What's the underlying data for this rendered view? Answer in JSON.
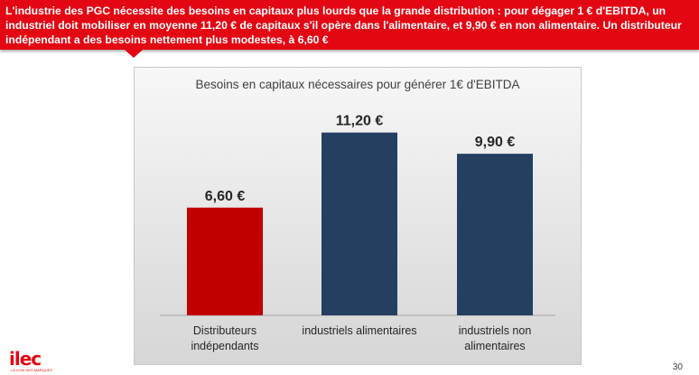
{
  "banner": {
    "text": "L'industrie des PGC nécessite des besoins en capitaux plus lourds que la grande distribution : pour dégager 1 € d'EBITDA, un industriel doit mobiliser en moyenne 11,20 € de capitaux s'il opère dans l'alimentaire, et 9,90 € en non alimentaire. Un distributeur indépendant a des besoins nettement plus modestes, à 6,60 €"
  },
  "chart_data": {
    "type": "bar",
    "title": "Besoins en capitaux nécessaires pour générer 1€ d'EBITDA",
    "categories": [
      "Distributeurs indépendants",
      "industriels alimentaires",
      "industriels non alimentaires"
    ],
    "category_lines": [
      [
        "Distributeurs",
        "indépendants"
      ],
      [
        "industriels alimentaires"
      ],
      [
        "industriels non",
        "alimentaires"
      ]
    ],
    "values": [
      6.6,
      11.2,
      9.9
    ],
    "value_labels": [
      "6,60 €",
      "11,20 €",
      "9,90 €"
    ],
    "colors": [
      "#c00000",
      "#243f60",
      "#243f60"
    ],
    "ylim": [
      0,
      12.4
    ],
    "grid": false,
    "legend": "none"
  },
  "logo": {
    "text": "ilec",
    "tagline": "LA VOIX DES MARQUES"
  },
  "page_number": "30"
}
